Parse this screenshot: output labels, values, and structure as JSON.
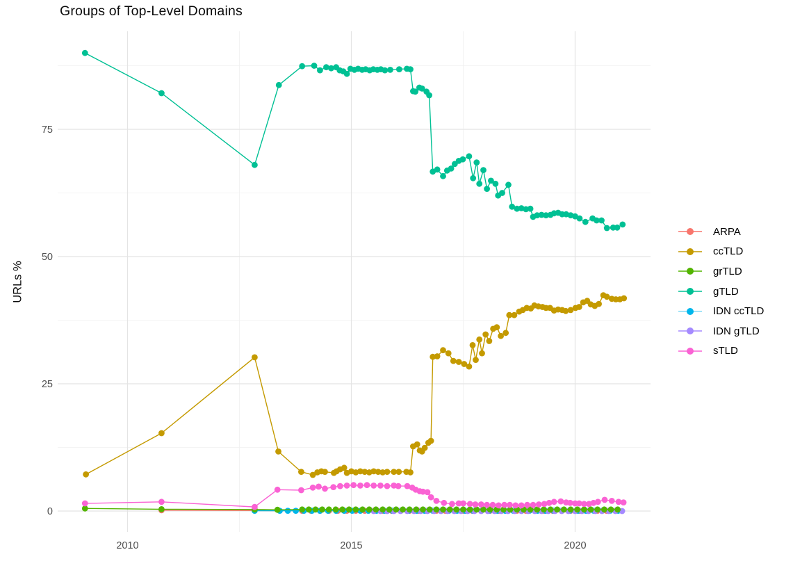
{
  "title": "Groups of Top-Level Domains",
  "legend": {
    "items": [
      {
        "label": "ARPA",
        "color": "#F8766D"
      },
      {
        "label": "ccTLD",
        "color": "#C49A00"
      },
      {
        "label": "grTLD",
        "color": "#53B400"
      },
      {
        "label": "gTLD",
        "color": "#00C094"
      },
      {
        "label": "IDN ccTLD",
        "color": "#00B6EB"
      },
      {
        "label": "IDN gTLD",
        "color": "#A58AFF"
      },
      {
        "label": "sTLD",
        "color": "#FA62D4"
      }
    ]
  },
  "chart_data": {
    "type": "scatter",
    "title": "Groups of Top-Level Domains",
    "xlabel": "",
    "ylabel": "URLs %",
    "xlim": [
      2008.45,
      2021.66
    ],
    "ylim": [
      -4.5,
      94.3
    ],
    "grid": true,
    "legend_position": "right",
    "axes": {
      "x_ticks": [
        2010,
        2015,
        2020
      ],
      "x_minor": [
        2012.5,
        2017.5
      ],
      "y_ticks": [
        0,
        25,
        50,
        75
      ],
      "y_minor": [
        12.5,
        37.5,
        62.5,
        87.5
      ]
    },
    "series": [
      {
        "name": "ARPA",
        "color": "#F8766D",
        "points": [
          [
            2010.76,
            0.15
          ],
          [
            2012.84,
            0.1
          ]
        ],
        "runs": [
          {
            "from": 2013.9,
            "to": 2021.06,
            "step": 0.2,
            "value": 0.05
          }
        ]
      },
      {
        "name": "IDN ccTLD",
        "color": "#00B6EB",
        "points": [
          [
            2012.84,
            0.05
          ]
        ],
        "runs": [
          {
            "from": 2013.4,
            "to": 2021.06,
            "step": 0.18,
            "value": 0.05
          }
        ]
      },
      {
        "name": "IDN gTLD",
        "color": "#A58AFF",
        "points": [],
        "runs": [
          {
            "from": 2015.5,
            "to": 2021.06,
            "step": 0.15,
            "value": 0.0
          }
        ]
      },
      {
        "name": "grTLD",
        "color": "#53B400",
        "points": [
          [
            2009.05,
            0.5
          ],
          [
            2010.76,
            0.35
          ],
          [
            2012.84,
            0.3
          ],
          [
            2013.35,
            0.25
          ]
        ],
        "runs": [
          {
            "from": 2013.9,
            "to": 2021.06,
            "step": 0.15,
            "value": 0.3
          }
        ]
      },
      {
        "name": "ccTLD",
        "color": "#C49A00",
        "points": [
          [
            2009.07,
            7.2
          ],
          [
            2010.76,
            15.3
          ],
          [
            2012.84,
            30.2
          ],
          [
            2013.37,
            11.7
          ],
          [
            2013.88,
            7.7
          ],
          [
            2014.14,
            7.1
          ],
          [
            2014.24,
            7.6
          ],
          [
            2014.33,
            7.8
          ],
          [
            2014.41,
            7.7
          ],
          [
            2014.61,
            7.5
          ],
          [
            2014.67,
            7.8
          ],
          [
            2014.75,
            8.2
          ],
          [
            2014.84,
            8.5
          ],
          [
            2014.9,
            7.5
          ],
          [
            2015.0,
            7.8
          ],
          [
            2015.1,
            7.6
          ],
          [
            2015.2,
            7.8
          ],
          [
            2015.3,
            7.7
          ],
          [
            2015.4,
            7.6
          ],
          [
            2015.5,
            7.8
          ],
          [
            2015.6,
            7.7
          ],
          [
            2015.7,
            7.6
          ],
          [
            2015.8,
            7.7
          ],
          [
            2015.95,
            7.7
          ],
          [
            2016.06,
            7.7
          ],
          [
            2016.23,
            7.7
          ],
          [
            2016.32,
            7.6
          ],
          [
            2016.38,
            12.7
          ],
          [
            2016.47,
            13.1
          ],
          [
            2016.53,
            11.9
          ],
          [
            2016.58,
            11.7
          ],
          [
            2016.64,
            12.4
          ],
          [
            2016.72,
            13.4
          ],
          [
            2016.78,
            13.8
          ],
          [
            2016.82,
            30.3
          ],
          [
            2016.92,
            30.4
          ],
          [
            2017.05,
            31.6
          ],
          [
            2017.17,
            31.0
          ],
          [
            2017.28,
            29.5
          ],
          [
            2017.4,
            29.3
          ],
          [
            2017.52,
            28.9
          ],
          [
            2017.63,
            28.4
          ],
          [
            2017.71,
            32.6
          ],
          [
            2017.78,
            29.7
          ],
          [
            2017.86,
            33.7
          ],
          [
            2017.92,
            31.0
          ],
          [
            2018.0,
            34.7
          ],
          [
            2018.08,
            33.4
          ],
          [
            2018.17,
            35.8
          ],
          [
            2018.25,
            36.1
          ],
          [
            2018.34,
            34.4
          ],
          [
            2018.45,
            35.0
          ],
          [
            2018.53,
            38.5
          ],
          [
            2018.64,
            38.5
          ],
          [
            2018.75,
            39.2
          ],
          [
            2018.83,
            39.5
          ],
          [
            2018.92,
            39.9
          ],
          [
            2019.01,
            39.8
          ],
          [
            2019.09,
            40.4
          ],
          [
            2019.18,
            40.2
          ],
          [
            2019.27,
            40.1
          ],
          [
            2019.35,
            39.9
          ],
          [
            2019.44,
            39.9
          ],
          [
            2019.53,
            39.4
          ],
          [
            2019.62,
            39.6
          ],
          [
            2019.71,
            39.5
          ],
          [
            2019.79,
            39.3
          ],
          [
            2019.9,
            39.5
          ],
          [
            2020.01,
            39.9
          ],
          [
            2020.09,
            40.1
          ],
          [
            2020.18,
            41.0
          ],
          [
            2020.27,
            41.3
          ],
          [
            2020.35,
            40.6
          ],
          [
            2020.44,
            40.3
          ],
          [
            2020.53,
            40.7
          ],
          [
            2020.63,
            42.4
          ],
          [
            2020.71,
            42.1
          ],
          [
            2020.82,
            41.7
          ],
          [
            2020.91,
            41.6
          ],
          [
            2021.0,
            41.6
          ],
          [
            2021.09,
            41.8
          ]
        ],
        "runs": []
      },
      {
        "name": "gTLD",
        "color": "#00C094",
        "points": [
          [
            2009.05,
            90.0
          ],
          [
            2010.76,
            82.1
          ],
          [
            2012.84,
            68.0
          ],
          [
            2013.38,
            83.7
          ],
          [
            2013.9,
            87.4
          ],
          [
            2014.17,
            87.5
          ],
          [
            2014.3,
            86.6
          ],
          [
            2014.44,
            87.2
          ],
          [
            2014.55,
            87.0
          ],
          [
            2014.66,
            87.2
          ],
          [
            2014.74,
            86.6
          ],
          [
            2014.82,
            86.4
          ],
          [
            2014.9,
            85.9
          ],
          [
            2014.98,
            86.9
          ],
          [
            2015.07,
            86.7
          ],
          [
            2015.15,
            86.9
          ],
          [
            2015.24,
            86.7
          ],
          [
            2015.32,
            86.8
          ],
          [
            2015.41,
            86.6
          ],
          [
            2015.49,
            86.8
          ],
          [
            2015.58,
            86.7
          ],
          [
            2015.66,
            86.8
          ],
          [
            2015.75,
            86.6
          ],
          [
            2015.87,
            86.7
          ],
          [
            2016.07,
            86.8
          ],
          [
            2016.24,
            86.9
          ],
          [
            2016.32,
            86.8
          ],
          [
            2016.38,
            82.5
          ],
          [
            2016.43,
            82.4
          ],
          [
            2016.52,
            83.2
          ],
          [
            2016.58,
            83.0
          ],
          [
            2016.68,
            82.4
          ],
          [
            2016.74,
            81.7
          ],
          [
            2016.82,
            66.7
          ],
          [
            2016.92,
            67.1
          ],
          [
            2017.05,
            65.8
          ],
          [
            2017.14,
            66.9
          ],
          [
            2017.23,
            67.3
          ],
          [
            2017.31,
            68.2
          ],
          [
            2017.4,
            68.8
          ],
          [
            2017.49,
            69.1
          ],
          [
            2017.63,
            69.7
          ],
          [
            2017.72,
            65.4
          ],
          [
            2017.8,
            68.5
          ],
          [
            2017.86,
            64.3
          ],
          [
            2017.95,
            67.0
          ],
          [
            2018.03,
            63.3
          ],
          [
            2018.12,
            64.9
          ],
          [
            2018.22,
            64.3
          ],
          [
            2018.28,
            62.0
          ],
          [
            2018.37,
            62.5
          ],
          [
            2018.51,
            64.1
          ],
          [
            2018.59,
            59.8
          ],
          [
            2018.7,
            59.4
          ],
          [
            2018.8,
            59.5
          ],
          [
            2018.9,
            59.3
          ],
          [
            2019.0,
            59.4
          ],
          [
            2019.06,
            57.8
          ],
          [
            2019.15,
            58.1
          ],
          [
            2019.25,
            58.2
          ],
          [
            2019.35,
            58.1
          ],
          [
            2019.45,
            58.2
          ],
          [
            2019.53,
            58.5
          ],
          [
            2019.62,
            58.6
          ],
          [
            2019.71,
            58.3
          ],
          [
            2019.8,
            58.3
          ],
          [
            2019.9,
            58.1
          ],
          [
            2020.0,
            57.9
          ],
          [
            2020.1,
            57.5
          ],
          [
            2020.23,
            56.8
          ],
          [
            2020.39,
            57.5
          ],
          [
            2020.48,
            57.1
          ],
          [
            2020.59,
            57.1
          ],
          [
            2020.71,
            55.6
          ],
          [
            2020.85,
            55.7
          ],
          [
            2020.94,
            55.7
          ],
          [
            2021.06,
            56.3
          ]
        ],
        "runs": []
      },
      {
        "name": "sTLD",
        "color": "#FA62D4",
        "points": [
          [
            2009.05,
            1.5
          ],
          [
            2010.76,
            1.8
          ],
          [
            2012.84,
            0.8
          ],
          [
            2013.35,
            4.2
          ],
          [
            2013.88,
            4.1
          ],
          [
            2014.14,
            4.6
          ],
          [
            2014.27,
            4.8
          ],
          [
            2014.41,
            4.4
          ],
          [
            2014.6,
            4.7
          ],
          [
            2014.75,
            4.9
          ],
          [
            2014.9,
            5.0
          ],
          [
            2015.05,
            5.1
          ],
          [
            2015.2,
            5.0
          ],
          [
            2015.35,
            5.1
          ],
          [
            2015.5,
            5.0
          ],
          [
            2015.65,
            5.0
          ],
          [
            2015.8,
            4.9
          ],
          [
            2015.95,
            5.0
          ],
          [
            2016.05,
            4.9
          ],
          [
            2016.25,
            4.9
          ],
          [
            2016.36,
            4.6
          ],
          [
            2016.44,
            4.2
          ],
          [
            2016.53,
            3.9
          ],
          [
            2016.6,
            3.8
          ],
          [
            2016.7,
            3.7
          ],
          [
            2016.78,
            2.7
          ],
          [
            2016.9,
            2.0
          ],
          [
            2017.07,
            1.6
          ],
          [
            2017.25,
            1.4
          ],
          [
            2017.4,
            1.5
          ],
          [
            2017.5,
            1.5
          ],
          [
            2017.65,
            1.4
          ],
          [
            2017.77,
            1.3
          ],
          [
            2017.9,
            1.3
          ],
          [
            2018.03,
            1.2
          ],
          [
            2018.16,
            1.2
          ],
          [
            2018.29,
            1.1
          ],
          [
            2018.42,
            1.2
          ],
          [
            2018.54,
            1.2
          ],
          [
            2018.67,
            1.1
          ],
          [
            2018.8,
            1.1
          ],
          [
            2018.93,
            1.2
          ],
          [
            2019.06,
            1.2
          ],
          [
            2019.19,
            1.3
          ],
          [
            2019.31,
            1.4
          ],
          [
            2019.42,
            1.6
          ],
          [
            2019.53,
            1.8
          ],
          [
            2019.68,
            1.9
          ],
          [
            2019.8,
            1.7
          ],
          [
            2019.89,
            1.6
          ],
          [
            2020.0,
            1.5
          ],
          [
            2020.09,
            1.5
          ],
          [
            2020.2,
            1.4
          ],
          [
            2020.31,
            1.4
          ],
          [
            2020.41,
            1.6
          ],
          [
            2020.51,
            1.8
          ],
          [
            2020.66,
            2.2
          ],
          [
            2020.82,
            2.0
          ],
          [
            2020.97,
            1.8
          ],
          [
            2021.08,
            1.7
          ]
        ],
        "runs": []
      }
    ]
  }
}
